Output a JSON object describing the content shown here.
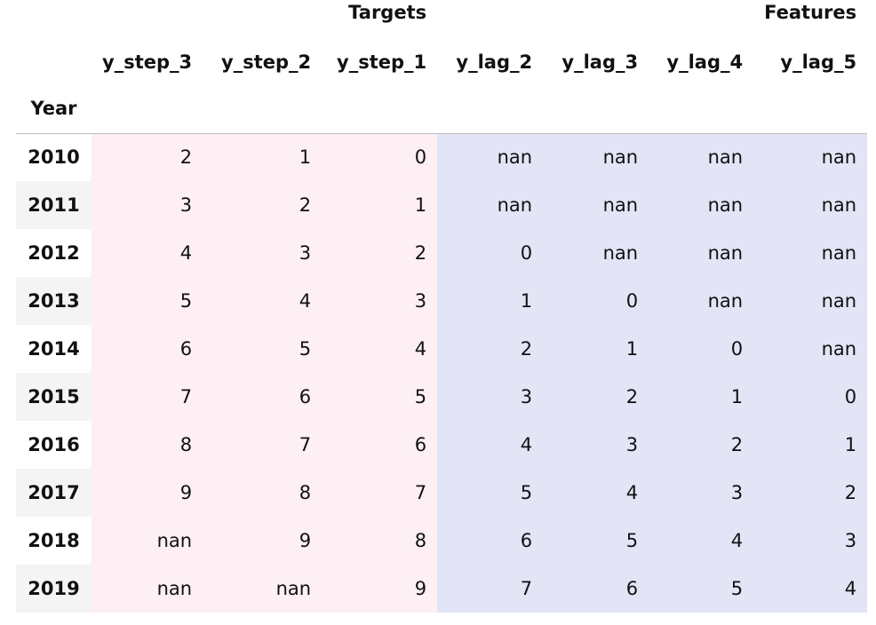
{
  "groups": {
    "targets": "Targets",
    "features": "Features"
  },
  "index_name": "Year",
  "columns": [
    "y_step_3",
    "y_step_2",
    "y_step_1",
    "y_lag_2",
    "y_lag_3",
    "y_lag_4",
    "y_lag_5"
  ],
  "rows": [
    {
      "year": "2010",
      "cells": [
        "2",
        "1",
        "0",
        "nan",
        "nan",
        "nan",
        "nan"
      ]
    },
    {
      "year": "2011",
      "cells": [
        "3",
        "2",
        "1",
        "nan",
        "nan",
        "nan",
        "nan"
      ]
    },
    {
      "year": "2012",
      "cells": [
        "4",
        "3",
        "2",
        "0",
        "nan",
        "nan",
        "nan"
      ]
    },
    {
      "year": "2013",
      "cells": [
        "5",
        "4",
        "3",
        "1",
        "0",
        "nan",
        "nan"
      ]
    },
    {
      "year": "2014",
      "cells": [
        "6",
        "5",
        "4",
        "2",
        "1",
        "0",
        "nan"
      ]
    },
    {
      "year": "2015",
      "cells": [
        "7",
        "6",
        "5",
        "3",
        "2",
        "1",
        "0"
      ]
    },
    {
      "year": "2016",
      "cells": [
        "8",
        "7",
        "6",
        "4",
        "3",
        "2",
        "1"
      ]
    },
    {
      "year": "2017",
      "cells": [
        "9",
        "8",
        "7",
        "5",
        "4",
        "3",
        "2"
      ]
    },
    {
      "year": "2018",
      "cells": [
        "nan",
        "9",
        "8",
        "6",
        "5",
        "4",
        "3"
      ]
    },
    {
      "year": "2019",
      "cells": [
        "nan",
        "nan",
        "9",
        "7",
        "6",
        "5",
        "4"
      ]
    }
  ],
  "colors": {
    "target_bg": "#fdeff3",
    "feature_bg": "#e4e4f7",
    "index_stripe": "#f4f4f4"
  }
}
